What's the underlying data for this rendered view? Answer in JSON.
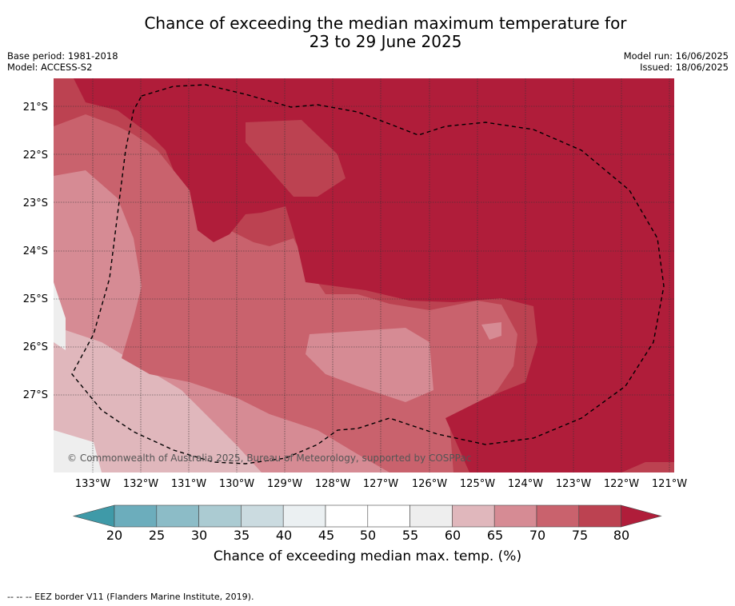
{
  "title_line1": "Chance of exceeding the median maximum temperature for",
  "title_line2": "23 to 29 June 2025",
  "base_period": "Base period: 1981-2018",
  "model": "Model: ACCESS-S2",
  "model_run": "Model run: 16/06/2025",
  "issued": "Issued: 18/06/2025",
  "lat_labels": [
    "21°S",
    "22°S",
    "23°S",
    "24°S",
    "25°S",
    "26°S",
    "27°S"
  ],
  "lon_labels": [
    "133°W",
    "132°W",
    "131°W",
    "130°W",
    "129°W",
    "128°W",
    "127°W",
    "126°W",
    "125°W",
    "124°W",
    "123°W",
    "122°W",
    "121°W"
  ],
  "colorbar": {
    "ticks": [
      "20",
      "25",
      "30",
      "35",
      "40",
      "45",
      "50",
      "55",
      "60",
      "65",
      "70",
      "75",
      "80"
    ],
    "colors": [
      "#3f9aa8",
      "#6cadbc",
      "#8cbcc7",
      "#abcbd2",
      "#cbdbe0",
      "#ebf0f2",
      "#ffffff",
      "#ffffff",
      "#eeeeee",
      "#e0b7bc",
      "#d68b94",
      "#c9626d",
      "#bc4251",
      "#b01d3a"
    ],
    "label": "Chance of exceeding median max. temp. (%)"
  },
  "copyright": "© Commonwealth of Australia 2025, Bureau of Meteorology, supported by COSPPac",
  "footer": "--  --  -- EEZ border V11 (Flanders Marine Institute, 2019)."
}
